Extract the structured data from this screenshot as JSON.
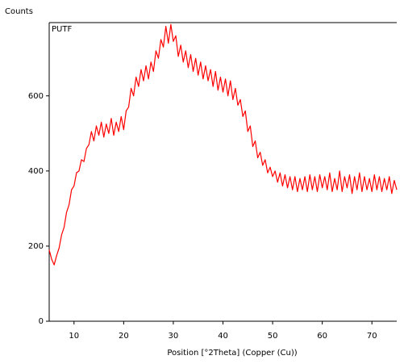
{
  "chart_data": {
    "type": "line",
    "y_label": "Counts",
    "x_label": "Position [°2Theta] (Copper (Cu))",
    "annotation": "PUTF",
    "color": "#ff0000",
    "x": [
      5,
      5.5,
      6,
      6.5,
      7,
      7.5,
      8,
      8.5,
      9,
      9.5,
      10,
      10.5,
      11,
      11.5,
      12,
      12.5,
      13,
      13.5,
      14,
      14.5,
      15,
      15.5,
      16,
      16.5,
      17,
      17.5,
      18,
      18.5,
      19,
      19.5,
      20,
      20.5,
      21,
      21.5,
      22,
      22.5,
      23,
      23.5,
      24,
      24.5,
      25,
      25.5,
      26,
      26.5,
      27,
      27.5,
      28,
      28.5,
      29,
      29.5,
      30,
      30.5,
      31,
      31.5,
      32,
      32.5,
      33,
      33.5,
      34,
      34.5,
      35,
      35.5,
      36,
      36.5,
      37,
      37.5,
      38,
      38.5,
      39,
      39.5,
      40,
      40.5,
      41,
      41.5,
      42,
      42.5,
      43,
      43.5,
      44,
      44.5,
      45,
      45.5,
      46,
      46.5,
      47,
      47.5,
      48,
      48.5,
      49,
      49.5,
      50,
      50.5,
      51,
      51.5,
      52,
      52.5,
      53,
      53.5,
      54,
      54.5,
      55,
      55.5,
      56,
      56.5,
      57,
      57.5,
      58,
      58.5,
      59,
      59.5,
      60,
      60.5,
      61,
      61.5,
      62,
      62.5,
      63,
      63.5,
      64,
      64.5,
      65,
      65.5,
      66,
      66.5,
      67,
      67.5,
      68,
      68.5,
      69,
      69.5,
      70,
      70.5,
      71,
      71.5,
      72,
      72.5,
      73,
      73.5,
      74,
      74.5,
      75
    ],
    "values": [
      190,
      165,
      150,
      175,
      195,
      230,
      250,
      290,
      310,
      350,
      360,
      395,
      400,
      430,
      425,
      460,
      470,
      505,
      480,
      520,
      495,
      530,
      490,
      525,
      500,
      540,
      495,
      530,
      505,
      545,
      510,
      560,
      570,
      620,
      600,
      650,
      625,
      670,
      640,
      680,
      645,
      690,
      665,
      720,
      700,
      750,
      730,
      785,
      740,
      790,
      745,
      760,
      705,
      735,
      690,
      720,
      675,
      710,
      665,
      700,
      655,
      690,
      645,
      680,
      640,
      670,
      625,
      665,
      615,
      650,
      610,
      645,
      600,
      640,
      590,
      620,
      575,
      590,
      545,
      560,
      505,
      520,
      465,
      480,
      435,
      450,
      415,
      430,
      395,
      410,
      385,
      400,
      370,
      395,
      360,
      390,
      355,
      385,
      350,
      385,
      345,
      380,
      350,
      385,
      345,
      390,
      350,
      385,
      345,
      390,
      355,
      385,
      350,
      395,
      345,
      380,
      350,
      400,
      345,
      385,
      355,
      390,
      340,
      385,
      350,
      395,
      345,
      385,
      350,
      380,
      345,
      390,
      350,
      385,
      345,
      380,
      350,
      385,
      340,
      375,
      350
    ],
    "xlim": [
      5,
      75
    ],
    "ylim": [
      0,
      795
    ],
    "xticks": [
      10,
      20,
      30,
      40,
      50,
      60,
      70
    ],
    "yticks": [
      0,
      200,
      400,
      600
    ]
  }
}
